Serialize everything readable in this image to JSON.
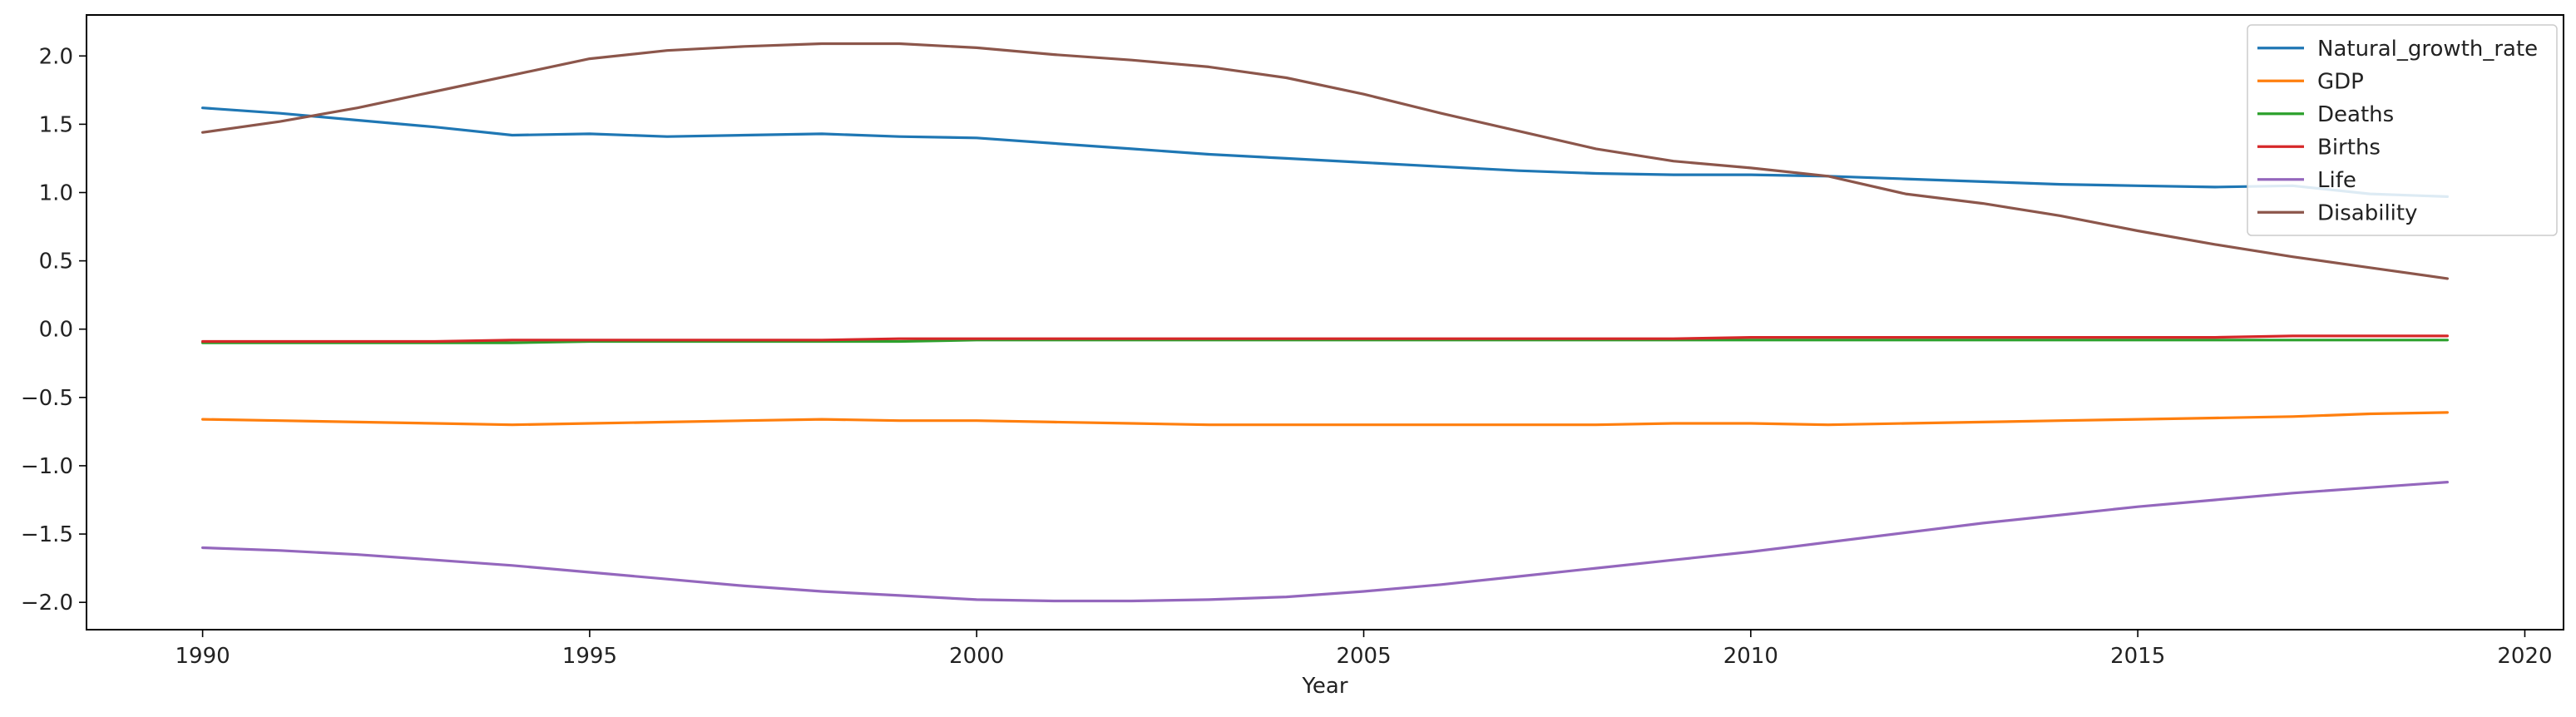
{
  "chart_data": {
    "type": "line",
    "title": "",
    "xlabel": "Year",
    "ylabel": "",
    "xlim": [
      1988.5,
      2020.5
    ],
    "ylim": [
      -2.2,
      2.3
    ],
    "xticks": [
      1990,
      1995,
      2000,
      2005,
      2010,
      2015,
      2020
    ],
    "xtick_labels": [
      "1990",
      "1995",
      "2000",
      "2005",
      "2010",
      "2015",
      "2020"
    ],
    "yticks": [
      2.0,
      1.5,
      1.0,
      0.5,
      0.0,
      -0.5,
      -1.0,
      -1.5,
      -2.0
    ],
    "ytick_labels": [
      "2.0",
      "1.5",
      "1.0",
      "0.5",
      "0.0",
      "−0.5",
      "−1.0",
      "−1.5",
      "−2.0"
    ],
    "grid": false,
    "legend_position": "top-right",
    "x": [
      1990,
      1991,
      1992,
      1993,
      1994,
      1995,
      1996,
      1997,
      1998,
      1999,
      2000,
      2001,
      2002,
      2003,
      2004,
      2005,
      2006,
      2007,
      2008,
      2009,
      2010,
      2011,
      2012,
      2013,
      2014,
      2015,
      2016,
      2017,
      2018,
      2019
    ],
    "series": [
      {
        "name": "Natural_growth_rate",
        "color": "#1f77b4",
        "values": [
          1.62,
          1.58,
          1.53,
          1.48,
          1.42,
          1.43,
          1.41,
          1.42,
          1.43,
          1.41,
          1.4,
          1.36,
          1.32,
          1.28,
          1.25,
          1.22,
          1.19,
          1.16,
          1.14,
          1.13,
          1.13,
          1.12,
          1.1,
          1.08,
          1.06,
          1.05,
          1.04,
          1.05,
          0.99,
          0.97
        ]
      },
      {
        "name": "GDP",
        "color": "#ff7f0e",
        "values": [
          -0.66,
          -0.67,
          -0.68,
          -0.69,
          -0.7,
          -0.69,
          -0.68,
          -0.67,
          -0.66,
          -0.67,
          -0.67,
          -0.68,
          -0.69,
          -0.7,
          -0.7,
          -0.7,
          -0.7,
          -0.7,
          -0.7,
          -0.69,
          -0.69,
          -0.7,
          -0.69,
          -0.68,
          -0.67,
          -0.66,
          -0.65,
          -0.64,
          -0.62,
          -0.61
        ]
      },
      {
        "name": "Deaths",
        "color": "#2ca02c",
        "values": [
          -0.1,
          -0.1,
          -0.1,
          -0.1,
          -0.1,
          -0.09,
          -0.09,
          -0.09,
          -0.09,
          -0.09,
          -0.08,
          -0.08,
          -0.08,
          -0.08,
          -0.08,
          -0.08,
          -0.08,
          -0.08,
          -0.08,
          -0.08,
          -0.08,
          -0.08,
          -0.08,
          -0.08,
          -0.08,
          -0.08,
          -0.08,
          -0.08,
          -0.08,
          -0.08
        ]
      },
      {
        "name": "Births",
        "color": "#d62728",
        "values": [
          -0.09,
          -0.09,
          -0.09,
          -0.09,
          -0.08,
          -0.08,
          -0.08,
          -0.08,
          -0.08,
          -0.07,
          -0.07,
          -0.07,
          -0.07,
          -0.07,
          -0.07,
          -0.07,
          -0.07,
          -0.07,
          -0.07,
          -0.07,
          -0.06,
          -0.06,
          -0.06,
          -0.06,
          -0.06,
          -0.06,
          -0.06,
          -0.05,
          -0.05,
          -0.05
        ]
      },
      {
        "name": "Life",
        "color": "#9467bd",
        "values": [
          -1.6,
          -1.62,
          -1.65,
          -1.69,
          -1.73,
          -1.78,
          -1.83,
          -1.88,
          -1.92,
          -1.95,
          -1.98,
          -1.99,
          -1.99,
          -1.98,
          -1.96,
          -1.92,
          -1.87,
          -1.81,
          -1.75,
          -1.69,
          -1.63,
          -1.56,
          -1.49,
          -1.42,
          -1.36,
          -1.3,
          -1.25,
          -1.2,
          -1.16,
          -1.12
        ]
      },
      {
        "name": "Disability",
        "color": "#8c564b",
        "values": [
          1.44,
          1.52,
          1.62,
          1.74,
          1.86,
          1.98,
          2.04,
          2.07,
          2.09,
          2.09,
          2.06,
          2.01,
          1.97,
          1.92,
          1.84,
          1.72,
          1.58,
          1.45,
          1.32,
          1.23,
          1.18,
          1.12,
          0.99,
          0.92,
          0.83,
          0.72,
          0.62,
          0.53,
          0.45,
          0.37
        ]
      }
    ]
  }
}
